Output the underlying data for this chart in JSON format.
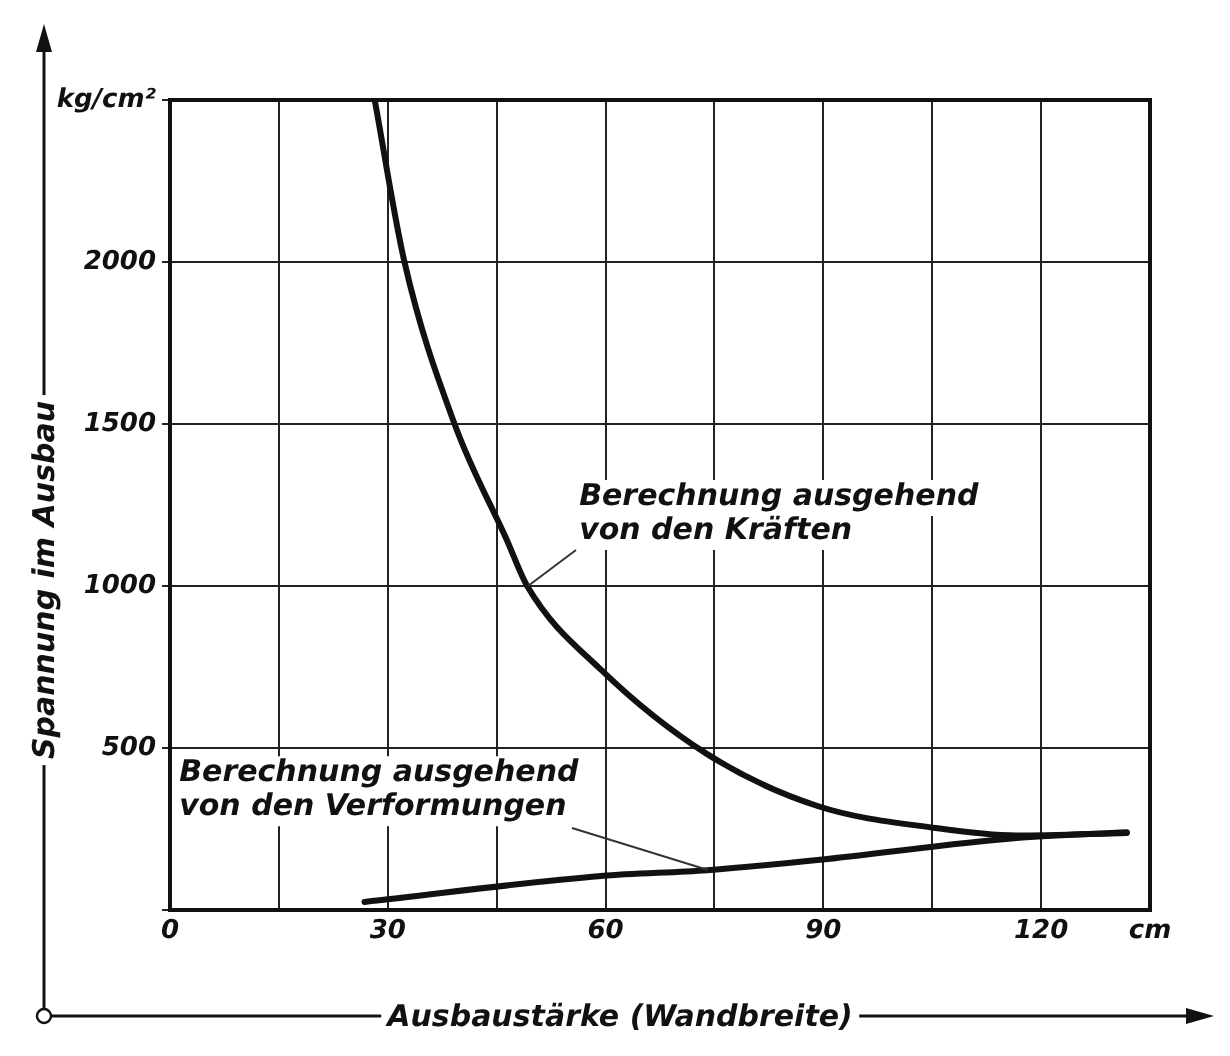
{
  "chart_data": {
    "type": "line",
    "xlabel": "Ausbaustärke (Wandbreite)",
    "ylabel": "Spannung im Ausbau",
    "xlim": [
      0,
      135
    ],
    "ylim": [
      0,
      2500
    ],
    "xticks": [
      0,
      {
        "value": 15,
        "label": null
      },
      30,
      {
        "value": 45,
        "label": null
      },
      60,
      {
        "value": 75,
        "label": null
      },
      90,
      {
        "value": 105,
        "label": null
      },
      120,
      {
        "value": 135,
        "label": "cm"
      }
    ],
    "yticks": [
      {
        "value": 0,
        "label": null
      },
      500,
      1000,
      1500,
      2000,
      {
        "value": 2500,
        "label": "kg/cm²"
      }
    ],
    "grid": true,
    "legend": false,
    "marker": "none",
    "line_style": "solid",
    "series": [
      {
        "name": "Berechnung ausgehend von den Kräften",
        "color": "#111111",
        "x": [
          28.2,
          32.3,
          39.2,
          46.4,
          49.2,
          59.4,
          74,
          89.2,
          105.5,
          116.6,
          131.8
        ],
        "values": [
          2500,
          2000,
          1500,
          1142,
          1000,
          741,
          481,
          321,
          253,
          230,
          238
        ]
      },
      {
        "name": "Berechnung ausgehend von den Verformungen",
        "color": "#111111",
        "x": [
          26.8,
          59.4,
          74,
          89.2,
          116.6,
          131.8
        ],
        "values": [
          25,
          105,
          123,
          154,
          222,
          240
        ]
      }
    ]
  }
}
